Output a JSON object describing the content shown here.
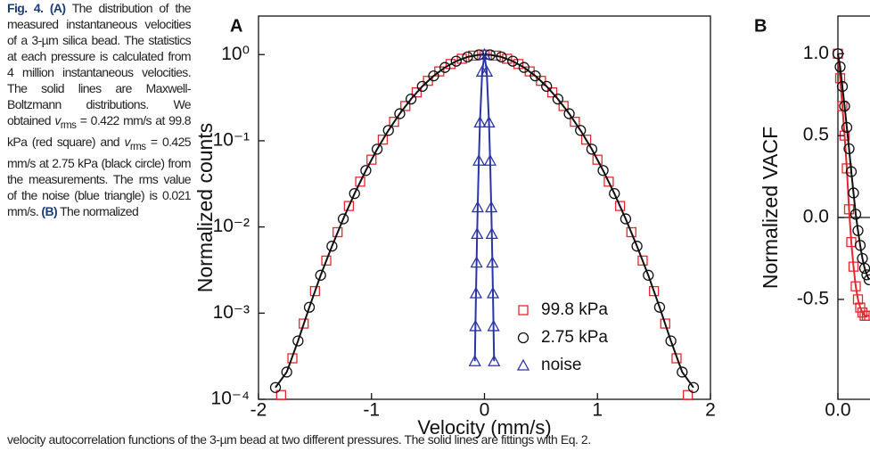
{
  "caption": {
    "label": "Fig. 4.",
    "panel_a": "(A)",
    "text_1": " The distribution of the measured instantaneous velocities of a 3-µm silica bead. The statistics at each pressure is calculated from 4 million instantaneous velocities. The solid lines are Maxwell-Boltzmann distributions. We obtained ",
    "v": "v",
    "sub": "rms",
    "text_2": " = 0.422 mm/s at 99.8 kPa (red square) and ",
    "text_3": " = 0.425 mm/s at 2.75 kPa (black circle) from the measurements. The rms value of the noise (blue triangle) is 0.021 mm/s. ",
    "panel_b": "(B)",
    "text_4": " The normalized",
    "bottom_line": "velocity autocorrelation functions of the 3-µm bead at two different pressures. The solid lines are fittings with Eq. 2."
  },
  "chart_data": [
    {
      "type": "scatter",
      "panel": "A",
      "x_label": "Velocity (mm/s)",
      "y_label": "Normalized counts",
      "xlim": [
        -2,
        2
      ],
      "xticks": [
        -2,
        -1,
        0,
        1,
        2
      ],
      "ylog": true,
      "ylim": [
        0.0001,
        2.8
      ],
      "yticks": [
        {
          "value": 1,
          "label": "10⁰"
        },
        {
          "value": 0.1,
          "label": "10⁻¹"
        },
        {
          "value": 0.01,
          "label": "10⁻²"
        },
        {
          "value": 0.001,
          "label": "10⁻³"
        },
        {
          "value": 0.0001,
          "label": "10⁻⁴"
        }
      ],
      "legend": "lower-right",
      "series": [
        {
          "name": "99.8 kPa",
          "color": "#e8262c",
          "marker": "square",
          "line": false,
          "x": [
            -1.8,
            -1.7,
            -1.6,
            -1.5,
            -1.4,
            -1.3,
            -1.2,
            -1.1,
            -1.0,
            -0.9,
            -0.8,
            -0.7,
            -0.6,
            -0.5,
            -0.4,
            -0.3,
            -0.2,
            -0.1,
            0,
            0.1,
            0.2,
            0.3,
            0.4,
            0.5,
            0.6,
            0.7,
            0.8,
            0.9,
            1.0,
            1.1,
            1.2,
            1.3,
            1.4,
            1.5,
            1.6,
            1.7,
            1.8
          ],
          "values": [
            0.000112,
            0.000299,
            0.000756,
            0.0018,
            0.00407,
            0.00869,
            0.0175,
            0.0335,
            0.0603,
            0.103,
            0.166,
            0.253,
            0.364,
            0.496,
            0.638,
            0.777,
            0.894,
            0.972,
            1,
            0.972,
            0.894,
            0.777,
            0.638,
            0.496,
            0.364,
            0.253,
            0.166,
            0.103,
            0.0603,
            0.0335,
            0.0175,
            0.00869,
            0.00407,
            0.0018,
            0.000756,
            0.000299,
            0.000112
          ]
        },
        {
          "name": "2.75 kPa",
          "color": "#111111",
          "marker": "circle",
          "line": true,
          "x": [
            -1.85,
            -1.75,
            -1.65,
            -1.55,
            -1.45,
            -1.35,
            -1.25,
            -1.15,
            -1.05,
            -0.95,
            -0.85,
            -0.75,
            -0.65,
            -0.55,
            -0.45,
            -0.35,
            -0.25,
            -0.15,
            -0.05,
            0.05,
            0.15,
            0.25,
            0.35,
            0.45,
            0.55,
            0.65,
            0.75,
            0.85,
            0.95,
            1.05,
            1.15,
            1.25,
            1.35,
            1.45,
            1.55,
            1.65,
            1.75,
            1.85
          ],
          "values": [
            0.000137,
            0.000207,
            0.000476,
            0.00117,
            0.00275,
            0.00598,
            0.0124,
            0.0244,
            0.0452,
            0.0799,
            0.132,
            0.206,
            0.305,
            0.428,
            0.566,
            0.709,
            0.839,
            0.939,
            0.993,
            0.993,
            0.939,
            0.839,
            0.709,
            0.566,
            0.428,
            0.305,
            0.206,
            0.132,
            0.0799,
            0.0452,
            0.0244,
            0.0124,
            0.00598,
            0.00275,
            0.00117,
            0.000476,
            0.000207,
            0.000137
          ]
        },
        {
          "name": "noise",
          "color": "#2b34a8",
          "marker": "triangle",
          "line": true,
          "x": [
            -0.085,
            -0.08,
            -0.075,
            -0.07,
            -0.065,
            -0.06,
            -0.05,
            -0.04,
            -0.02,
            0,
            0.02,
            0.04,
            0.05,
            0.06,
            0.065,
            0.07,
            0.075,
            0.08,
            0.085
          ],
          "values": [
            0.000277,
            0.000706,
            0.0017,
            0.00386,
            0.00831,
            0.0169,
            0.0588,
            0.163,
            0.635,
            1,
            0.635,
            0.163,
            0.0588,
            0.0169,
            0.00831,
            0.00386,
            0.0017,
            0.000706,
            0.000277
          ]
        }
      ]
    },
    {
      "type": "scatter",
      "panel": "B",
      "y_label": "Normalized VACF",
      "xlim": [
        0,
        1
      ],
      "xticks": [
        {
          "value": 0,
          "label": "0.0"
        }
      ],
      "ylim": [
        -1.11,
        1.23
      ],
      "yticks": [
        {
          "value": 1,
          "label": "1.0"
        },
        {
          "value": 0.5,
          "label": "0.5"
        },
        {
          "value": 0,
          "label": "0.0"
        },
        {
          "value": -0.5,
          "label": "-0.5"
        }
      ],
      "reference_line": 0,
      "series": [
        {
          "color": "#e8262c",
          "marker": "square",
          "line": true,
          "x": [
            0,
            0.005,
            0.01,
            0.015,
            0.02,
            0.025,
            0.03,
            0.035,
            0.04,
            0.045,
            0.05,
            0.055,
            0.06,
            0.065,
            0.07
          ],
          "values": [
            1,
            0.85,
            0.68,
            0.5,
            0.3,
            0.05,
            -0.15,
            -0.3,
            -0.42,
            -0.5,
            -0.55,
            -0.58,
            -0.6,
            -0.6,
            -0.6
          ]
        },
        {
          "color": "#111111",
          "marker": "circle",
          "line": true,
          "x": [
            0,
            0.005,
            0.01,
            0.015,
            0.02,
            0.025,
            0.03,
            0.035,
            0.04,
            0.045,
            0.05,
            0.055,
            0.06,
            0.065,
            0.07
          ],
          "values": [
            1,
            0.92,
            0.8,
            0.68,
            0.55,
            0.42,
            0.28,
            0.15,
            0.02,
            -0.08,
            -0.17,
            -0.25,
            -0.31,
            -0.35,
            -0.38
          ]
        }
      ]
    }
  ]
}
